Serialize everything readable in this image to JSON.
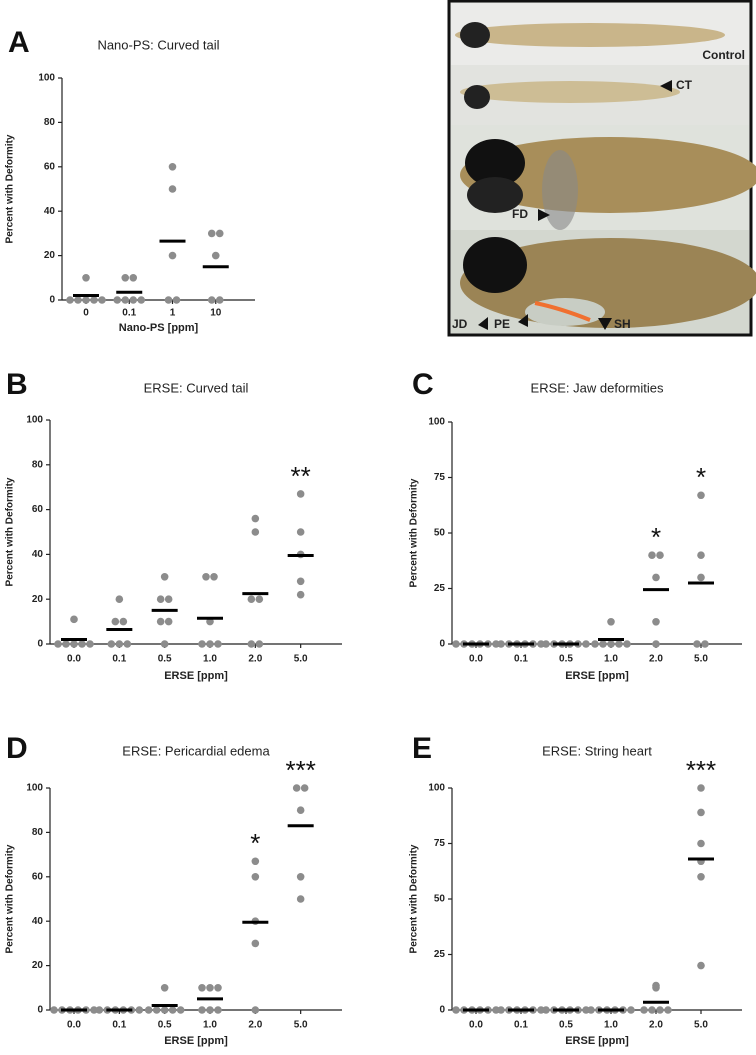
{
  "chart_data": [
    {
      "type": "strip",
      "panel": "A",
      "title": "Nano-PS: Curved tail",
      "x_label": "Nano-PS [ppm]",
      "y_label": "Percent with Deformity",
      "categories": [
        "0",
        "0.1",
        "1",
        "10"
      ],
      "points": [
        [
          0,
          0,
          0,
          0,
          0,
          10
        ],
        [
          0,
          0,
          0,
          0,
          10,
          10
        ],
        [
          0,
          0,
          20,
          50,
          60
        ],
        [
          0,
          0,
          20,
          30,
          30
        ]
      ],
      "means": [
        2,
        3.5,
        26.5,
        15
      ],
      "annotations": [
        null,
        null,
        null,
        null
      ],
      "ylim": [
        0,
        100
      ],
      "yticks": [
        0,
        20,
        40,
        60,
        80,
        100
      ],
      "color": "#8c8c8c",
      "mean_color": "#000000"
    },
    {
      "type": "strip",
      "panel": "B",
      "title": "ERSE: Curved tail",
      "x_label": "ERSE [ppm]",
      "y_label": "Percent with Deformity",
      "categories": [
        "0.0",
        "0.1",
        "0.5",
        "1.0",
        "2.0",
        "5.0"
      ],
      "points": [
        [
          0,
          0,
          0,
          0,
          0,
          11
        ],
        [
          0,
          0,
          0,
          10,
          10,
          20
        ],
        [
          0,
          10,
          10,
          20,
          20,
          30
        ],
        [
          0,
          0,
          0,
          10,
          30,
          30
        ],
        [
          0,
          0,
          20,
          20,
          50,
          56
        ],
        [
          22,
          28,
          40,
          50,
          67
        ]
      ],
      "means": [
        2,
        6.5,
        15,
        11.5,
        22.5,
        39.5
      ],
      "annotations": [
        null,
        null,
        null,
        null,
        null,
        "**"
      ],
      "ylim": [
        0,
        100
      ],
      "yticks": [
        0,
        20,
        40,
        60,
        80,
        100
      ],
      "color": "#8c8c8c",
      "mean_color": "#000000"
    },
    {
      "type": "strip",
      "panel": "C",
      "title": "ERSE: Jaw deformities",
      "x_label": "ERSE [ppm]",
      "y_label": "Percent with Deformity",
      "categories": [
        "0.0",
        "0.1",
        "0.5",
        "1.0",
        "2.0",
        "5.0"
      ],
      "points": [
        [
          0,
          0,
          0,
          0,
          0,
          0
        ],
        [
          0,
          0,
          0,
          0,
          0,
          0
        ],
        [
          0,
          0,
          0,
          0,
          0,
          0
        ],
        [
          0,
          0,
          0,
          0,
          0,
          10
        ],
        [
          0,
          10,
          30,
          40,
          40
        ],
        [
          0,
          0,
          30,
          40,
          67
        ]
      ],
      "means": [
        0,
        0,
        0,
        2,
        24.5,
        27.5
      ],
      "annotations": [
        null,
        null,
        null,
        null,
        "*",
        "*"
      ],
      "ylim": [
        0,
        100
      ],
      "yticks": [
        0,
        25,
        50,
        75,
        100
      ],
      "color": "#8c8c8c",
      "mean_color": "#000000"
    },
    {
      "type": "strip",
      "panel": "D",
      "title": "ERSE: Pericardial edema",
      "x_label": "ERSE [ppm]",
      "y_label": "Percent with Deformity",
      "categories": [
        "0.0",
        "0.1",
        "0.5",
        "1.0",
        "2.0",
        "5.0"
      ],
      "points": [
        [
          0,
          0,
          0,
          0,
          0,
          0
        ],
        [
          0,
          0,
          0,
          0,
          0,
          0
        ],
        [
          0,
          0,
          0,
          0,
          0,
          10
        ],
        [
          0,
          0,
          0,
          10,
          10,
          10
        ],
        [
          0,
          30,
          40,
          60,
          67
        ],
        [
          50,
          60,
          90,
          100,
          100
        ]
      ],
      "means": [
        0,
        0,
        2,
        5,
        39.5,
        83
      ],
      "annotations": [
        null,
        null,
        null,
        null,
        "*",
        "***"
      ],
      "ylim": [
        0,
        100
      ],
      "yticks": [
        0,
        20,
        40,
        60,
        80,
        100
      ],
      "color": "#8c8c8c",
      "mean_color": "#000000"
    },
    {
      "type": "strip",
      "panel": "E",
      "title": "ERSE: String heart",
      "x_label": "ERSE [ppm]",
      "y_label": "Percent with Deformity",
      "categories": [
        "0.0",
        "0.1",
        "0.5",
        "1.0",
        "2.0",
        "5.0"
      ],
      "points": [
        [
          0,
          0,
          0,
          0,
          0,
          0
        ],
        [
          0,
          0,
          0,
          0,
          0,
          0
        ],
        [
          0,
          0,
          0,
          0,
          0,
          0
        ],
        [
          0,
          0,
          0,
          0,
          0,
          0
        ],
        [
          0,
          0,
          0,
          0,
          10,
          11
        ],
        [
          20,
          60,
          67,
          75,
          89,
          100
        ]
      ],
      "means": [
        0,
        0,
        0,
        0,
        3.5,
        68
      ],
      "annotations": [
        null,
        null,
        null,
        null,
        null,
        "***"
      ],
      "ylim": [
        0,
        100
      ],
      "yticks": [
        0,
        25,
        50,
        75,
        100
      ],
      "color": "#8c8c8c",
      "mean_color": "#000000"
    }
  ],
  "photo": {
    "labels": [
      "Control",
      "CT",
      "FD",
      "JD",
      "PE",
      "SH"
    ]
  }
}
